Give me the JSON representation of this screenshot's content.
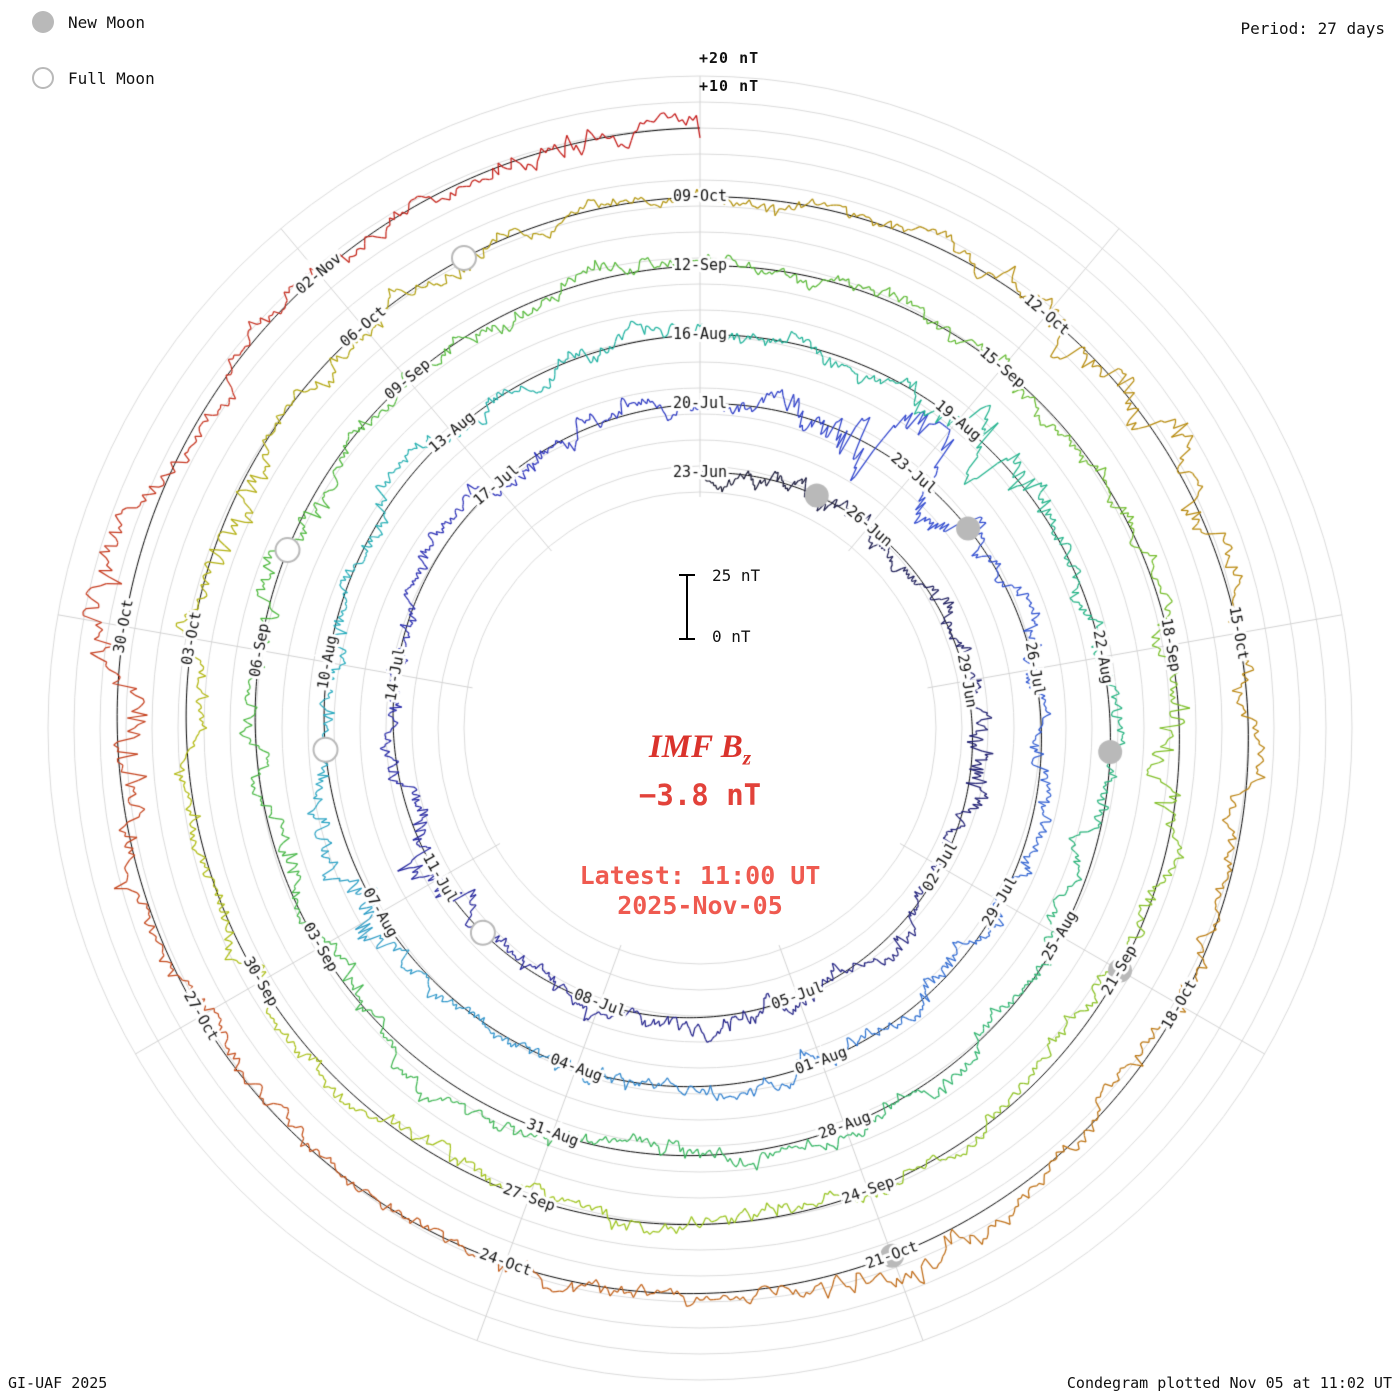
{
  "header": {
    "legend": [
      {
        "label": "New Moon",
        "type": "new"
      },
      {
        "label": "Full Moon",
        "type": "full"
      }
    ],
    "period_label": "Period: 27 days"
  },
  "footer": {
    "left": "GI-UAF 2025",
    "right": "Condegram plotted Nov 05 at 11:02 UT"
  },
  "center": {
    "title": "IMF B",
    "title_sub": "z",
    "value": "−3.8 nT",
    "latest_line1": "Latest: 11:00 UT",
    "latest_line2": "2025-Nov-05",
    "scale_top": "25 nT",
    "scale_bottom": "0 nT",
    "title_color": "#da332c",
    "value_color": "#e2423a",
    "latest_color": "#ef5a50"
  },
  "chart_data": {
    "type": "line",
    "variant": "condegram (polar spiral time-series, one ring per solar rotation)",
    "quantity": "IMF Bz",
    "units": "nT",
    "period_days": 27,
    "tick_step_days": 3,
    "start_date": "23-Jun",
    "end_date": "05-Nov",
    "latest_value_nT": -3.8,
    "radial_scale": {
      "gridline_step_nT": 10,
      "labels": [
        "+20 nT",
        "+10 nT"
      ],
      "scalebar": {
        "top": "25 nT",
        "bottom": "0 nT",
        "span_nT": 25
      }
    },
    "rings": [
      {
        "start_label": "23-Jun",
        "tick_labels": [
          "23-Jun",
          "26-Jun",
          "29-Jun",
          "02-Jul",
          "05-Jul",
          "08-Jul",
          "11-Jul",
          "14-Jul",
          "17-Jul"
        ]
      },
      {
        "start_label": "20-Jul",
        "tick_labels": [
          "20-Jul",
          "23-Jul",
          "26-Jul",
          "29-Jul",
          "01-Aug",
          "04-Aug",
          "07-Aug",
          "10-Aug",
          "13-Aug"
        ]
      },
      {
        "start_label": "16-Aug",
        "tick_labels": [
          "16-Aug",
          "19-Aug",
          "22-Aug",
          "25-Aug",
          "28-Aug",
          "31-Aug",
          "03-Sep",
          "06-Sep",
          "09-Sep"
        ]
      },
      {
        "start_label": "12-Sep",
        "tick_labels": [
          "12-Sep",
          "15-Sep",
          "18-Sep",
          "21-Sep",
          "24-Sep",
          "27-Sep",
          "30-Sep",
          "03-Oct",
          "06-Oct"
        ]
      },
      {
        "start_label": "09-Oct",
        "tick_labels": [
          "09-Oct",
          "12-Oct",
          "15-Oct",
          "18-Oct",
          "21-Oct",
          "24-Oct",
          "27-Oct",
          "30-Oct",
          "02-Nov"
        ]
      }
    ],
    "moons": [
      {
        "type": "new",
        "date": "25-Jun",
        "day": 2
      },
      {
        "type": "full",
        "date": "10-Jul",
        "day": 17
      },
      {
        "type": "new",
        "date": "24-Jul",
        "day": 31
      },
      {
        "type": "full",
        "date": "09-Aug",
        "day": 47
      },
      {
        "type": "new",
        "date": "23-Aug",
        "day": 61
      },
      {
        "type": "full",
        "date": "07-Sep",
        "day": 76
      },
      {
        "type": "new",
        "date": "21-Sep",
        "day": 90
      },
      {
        "type": "full",
        "date": "07-Oct",
        "day": 106
      },
      {
        "type": "new",
        "date": "21-Oct",
        "day": 120
      }
    ],
    "moon_fill": "#b9b9b9",
    "color_timeline": [
      {
        "day": 0,
        "color": "#1b1b2e"
      },
      {
        "day": 6,
        "color": "#1d1d6b"
      },
      {
        "day": 16,
        "color": "#232394"
      },
      {
        "day": 24,
        "color": "#2a2fb9"
      },
      {
        "day": 30,
        "color": "#2f46cf"
      },
      {
        "day": 37,
        "color": "#2f6ad2"
      },
      {
        "day": 43,
        "color": "#2f92cb"
      },
      {
        "day": 48,
        "color": "#27acbe"
      },
      {
        "day": 54,
        "color": "#1cb29b"
      },
      {
        "day": 61,
        "color": "#27b37f"
      },
      {
        "day": 68,
        "color": "#39b55c"
      },
      {
        "day": 75,
        "color": "#4cb83e"
      },
      {
        "day": 82,
        "color": "#58b836"
      },
      {
        "day": 88,
        "color": "#7fbf27"
      },
      {
        "day": 95,
        "color": "#9cc41c"
      },
      {
        "day": 101,
        "color": "#b2ba10"
      },
      {
        "day": 108,
        "color": "#b2920e"
      },
      {
        "day": 114,
        "color": "#b8860b"
      },
      {
        "day": 120,
        "color": "#bf6a15"
      },
      {
        "day": 126,
        "color": "#c44c1c"
      },
      {
        "day": 131,
        "color": "#c52f1d"
      },
      {
        "day": 135,
        "color": "#c31515"
      }
    ],
    "storms": [
      {
        "day": 7.5,
        "length": 2,
        "amp": 1.9
      },
      {
        "day": 18,
        "length": 2.5,
        "amp": 2.1
      },
      {
        "day": 29.5,
        "length": 4.5,
        "amp": 3.1
      },
      {
        "day": 45.5,
        "length": 3,
        "amp": 2.3
      },
      {
        "day": 57.5,
        "length": 3,
        "amp": 3.0
      },
      {
        "day": 76,
        "length": 2,
        "amp": 1.8
      },
      {
        "day": 88,
        "length": 2,
        "amp": 2.6
      },
      {
        "day": 103,
        "length": 2,
        "amp": 1.7
      },
      {
        "day": 112,
        "length": 4,
        "amp": 2.2
      },
      {
        "day": 120,
        "length": 2.5,
        "amp": 1.9
      },
      {
        "day": 128.5,
        "length": 4,
        "amp": 2.4
      },
      {
        "day": 134,
        "length": 1.5,
        "amp": 1.8
      }
    ]
  }
}
